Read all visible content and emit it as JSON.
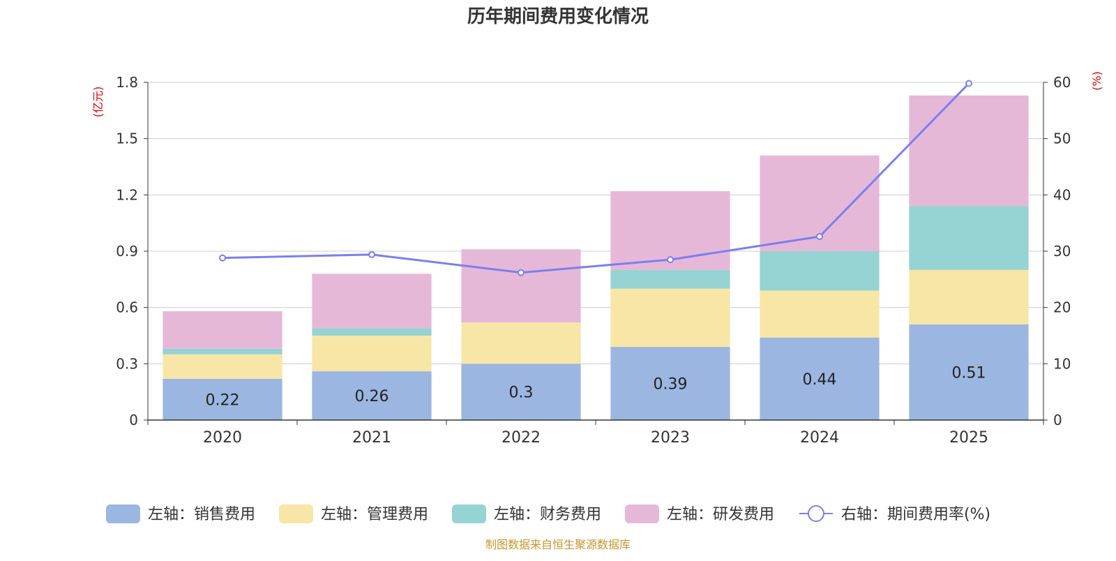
{
  "colors": {
    "sales": "#9bb6e0",
    "admin": "#f7e6a6",
    "finance": "#96d3d3",
    "rnd": "#e6b8d8",
    "rate": "#7b7ff0",
    "title": "#333333",
    "axis_unit": "#e00000",
    "source": "#c9952e",
    "grid": "#cccccc",
    "axis": "#333333"
  },
  "chart_data": {
    "type": "bar",
    "title": "历年期间费用变化情况",
    "source": "制图数据来自恒生聚源数据库",
    "categories": [
      "2020",
      "2021",
      "2022",
      "2023",
      "2024",
      "2025"
    ],
    "left_axis": {
      "unit": "(亿元)",
      "ylim": [
        0,
        1.8
      ],
      "ticks": [
        "0",
        "0.3",
        "0.6",
        "0.9",
        "1.2",
        "1.5",
        "1.8"
      ]
    },
    "right_axis": {
      "unit": "(%)",
      "ylim": [
        0,
        60
      ],
      "ticks": [
        "0",
        "10",
        "20",
        "30",
        "40",
        "50",
        "60"
      ]
    },
    "series": [
      {
        "name": "左轴：销售费用",
        "key": "sales",
        "axis": "left",
        "type": "bar",
        "values": [
          0.22,
          0.26,
          0.3,
          0.39,
          0.44,
          0.51
        ],
        "labels": [
          "0.22",
          "0.26",
          "0.3",
          "0.39",
          "0.44",
          "0.51"
        ]
      },
      {
        "name": "左轴：管理费用",
        "key": "admin",
        "axis": "left",
        "type": "bar",
        "values": [
          0.13,
          0.19,
          0.22,
          0.31,
          0.25,
          0.29
        ]
      },
      {
        "name": "左轴：财务费用",
        "key": "finance",
        "axis": "left",
        "type": "bar",
        "values": [
          0.03,
          0.04,
          0.0,
          0.1,
          0.21,
          0.34
        ]
      },
      {
        "name": "左轴：研发费用",
        "key": "rnd",
        "axis": "left",
        "type": "bar",
        "values": [
          0.2,
          0.29,
          0.39,
          0.42,
          0.51,
          0.59
        ]
      },
      {
        "name": "右轴：期间费用率(%)",
        "key": "rate",
        "axis": "right",
        "type": "line",
        "values": [
          28.8,
          29.4,
          26.2,
          28.5,
          32.6,
          59.8
        ]
      }
    ]
  }
}
